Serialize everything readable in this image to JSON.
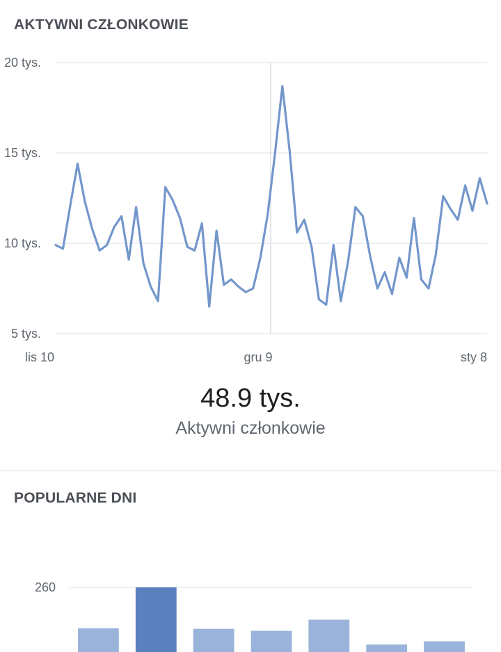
{
  "active_members": {
    "title": "AKTYWNI CZŁONKOWIE",
    "stat_value": "48.9 tys.",
    "stat_label": "Aktywni członkowie"
  },
  "popular_days": {
    "title": "POPULARNE DNI"
  },
  "colors": {
    "line": "#7397cb",
    "grid": "#e4e6eb",
    "bar_light": "#9ab3da",
    "bar_highlight": "#5a80be"
  },
  "chart_data": [
    {
      "type": "line",
      "title": "AKTYWNI CZŁONKOWIE",
      "xlabel": "",
      "ylabel": "",
      "ylim": [
        5000,
        20000
      ],
      "yticks": [
        5000,
        10000,
        15000,
        20000
      ],
      "ytick_labels": [
        "5 tys.",
        "10 tys.",
        "15 tys.",
        "20 tys."
      ],
      "xtick_labels": [
        "lis 10",
        "gru 9",
        "sty 8"
      ],
      "grid": true,
      "series": [
        {
          "values": [
            9900,
            9700,
            12100,
            14400,
            12300,
            10800,
            9600,
            9900,
            10900,
            11500,
            9100,
            12000,
            8900,
            7600,
            6800,
            13100,
            12400,
            11400,
            9800,
            9600,
            11100,
            6500,
            10700,
            7700,
            8000,
            7600,
            7300,
            7500,
            9200,
            11600,
            15000,
            18700,
            15100,
            10600,
            11300,
            9800,
            6900,
            6600,
            9900,
            6800,
            9000,
            12000,
            11500,
            9300,
            7500,
            8400,
            7200,
            9200,
            8100,
            11400,
            8000,
            7500,
            9400,
            12600,
            11900,
            11300,
            13200,
            11800,
            13600,
            12200
          ]
        }
      ]
    },
    {
      "type": "bar",
      "title": "POPULARNE DNI",
      "yticks": [
        260
      ],
      "ytick_labels": [
        "260"
      ],
      "series": [
        {
          "values": [
            95,
            260,
            93,
            85,
            130,
            30,
            43
          ],
          "highlight_index": 1
        }
      ]
    }
  ]
}
